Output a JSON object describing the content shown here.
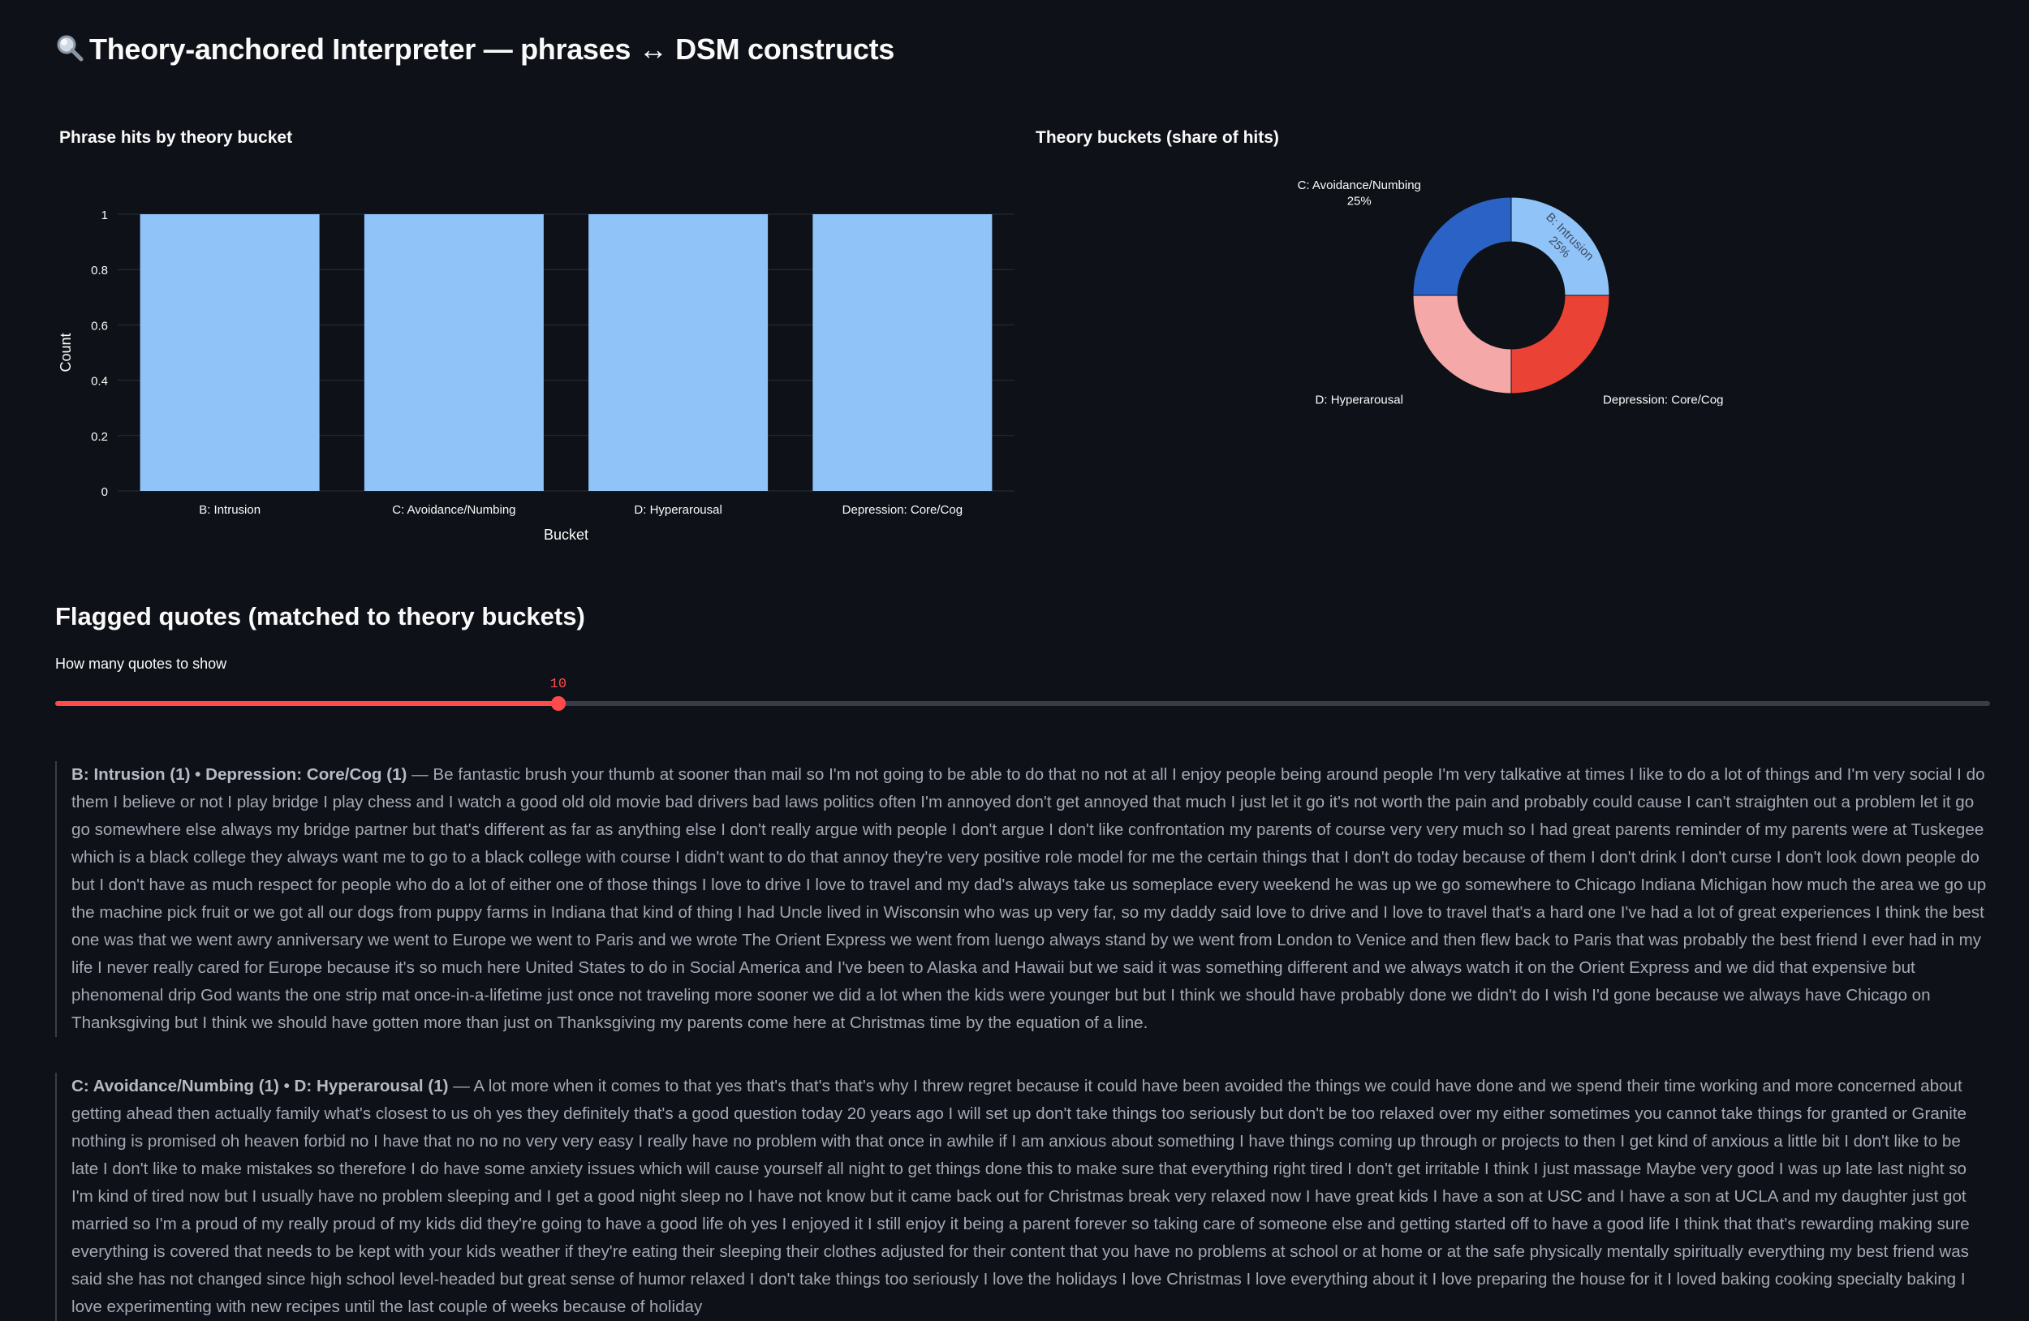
{
  "page": {
    "title": "Theory-anchored Interpreter — phrases ↔ DSM constructs",
    "title_icon": "magnifier-icon"
  },
  "bar_chart": {
    "title": "Phrase hits by theory bucket"
  },
  "pie_chart": {
    "title": "Theory buckets (share of hits)"
  },
  "chart_data": [
    {
      "type": "bar",
      "title": "Phrase hits by theory bucket",
      "categories": [
        "B: Intrusion",
        "C: Avoidance/Numbing",
        "D: Hyperarousal",
        "Depression: Core/Cog"
      ],
      "values": [
        1,
        1,
        1,
        1
      ],
      "xlabel": "Bucket",
      "ylabel": "Count",
      "ylim": [
        0,
        1
      ],
      "yticks": [
        0,
        0.2,
        0.4,
        0.6,
        0.8,
        1
      ],
      "grid": true,
      "color": "#90c4f9"
    },
    {
      "type": "pie",
      "title": "Theory buckets (share of hits)",
      "donut": true,
      "labels": [
        "B: Intrusion",
        "Depression: Core/Cog",
        "D: Hyperarousal",
        "C: Avoidance/Numbing"
      ],
      "values": [
        1,
        1,
        1,
        1
      ],
      "percent_labels": [
        "25%",
        "25%",
        "25%",
        "25%"
      ],
      "colors": [
        "#90c4f9",
        "#ea4335",
        "#f4a9a8",
        "#2a63c5"
      ]
    }
  ],
  "quotes_section": {
    "heading": "Flagged quotes (matched to theory buckets)",
    "slider_label": "How many quotes to show",
    "slider_value": "10",
    "slider_fraction": 0.26
  },
  "quotes": [
    {
      "tags": "B: Intrusion (1) • Depression: Core/Cog (1)",
      "text": " — Be fantastic brush your thumb at sooner than mail so I'm not going to be able to do that no not at all I enjoy people being around people I'm very talkative at times I like to do a lot of things and I'm very social I do them I believe or not I play bridge I play chess and I watch a good old old movie bad drivers bad laws politics often I'm annoyed don't get annoyed that much I just let it go it's not worth the pain and probably could cause I can't straighten out a problem let it go go somewhere else always my bridge partner but that's different as far as anything else I don't really argue with people I don't argue I don't like confrontation my parents of course very very much so I had great parents reminder of my parents were at Tuskegee which is a black college they always want me to go to a black college with course I didn't want to do that annoy they're very positive role model for me the certain things that I don't do today because of them I don't drink I don't curse I don't look down people do but I don't have as much respect for people who do a lot of either one of those things I love to drive I love to travel and my dad's always take us someplace every weekend he was up we go somewhere to Chicago Indiana Michigan how much the area we go up the machine pick fruit or we got all our dogs from puppy farms in Indiana that kind of thing I had Uncle lived in Wisconsin who was up very far, so my daddy said love to drive and I love to travel that's a hard one I've had a lot of great experiences I think the best one was that we went awry anniversary we went to Europe we went to Paris and we wrote The Orient Express we went from luengo always stand by we went from London to Venice and then flew back to Paris that was probably the best friend I ever had in my life I never really cared for Europe because it's so much here United States to do in Social America and I've been to Alaska and Hawaii but we said it was something different and we always watch it on the Orient Express and we did that expensive but phenomenal drip God wants the one strip mat once-in-a-lifetime just once not traveling more sooner we did a lot when the kids were younger but but I think we should have probably done we didn't do I wish I'd gone because we always have Chicago on Thanksgiving but I think we should have gotten more than just on Thanksgiving my parents come here at Christmas time by the equation of a line."
    },
    {
      "tags": "C: Avoidance/Numbing (1) • D: Hyperarousal (1)",
      "text": " — A lot more when it comes to that yes that's that's that's why I threw regret because it could have been avoided the things we could have done and we spend their time working and more concerned about getting ahead then actually family what's closest to us oh yes they definitely that's a good question today 20 years ago I will set up don't take things too seriously but don't be too relaxed over my either sometimes you cannot take things for granted or Granite nothing is promised oh heaven forbid no I have that no no no very very easy I really have no problem with that once in awhile if I am anxious about something I have things coming up through or projects to then I get kind of anxious a little bit I don't like to be late I don't like to make mistakes so therefore I do have some anxiety issues which will cause yourself all night to get things done this to make sure that everything right tired I don't get irritable I think I just massage Maybe very good I was up late last night so I'm kind of tired now but I usually have no problem sleeping and I get a good night sleep no I have not know but it came back out for Christmas break very relaxed now I have great kids I have a son at USC and I have a son at UCLA and my daughter just got married so I'm a proud of my really proud of my kids did they're going to have a good life oh yes I enjoyed it I still enjoy it being a parent forever so taking care of someone else and getting started off to have a good life I think that that's rewarding making sure everything is covered that needs to be kept with your kids weather if they're eating their sleeping their clothes adjusted for their content that you have no problems at school or at home or at the safe physically mentally spiritually everything my best friend was said she has not changed since high school level-headed but great sense of humor relaxed I don't take things too seriously I love the holidays I love Christmas I love everything about it I love preparing the house for it I loved baking cooking specialty baking I love experimenting with new recipes until the last couple of weeks because of holiday"
    }
  ]
}
